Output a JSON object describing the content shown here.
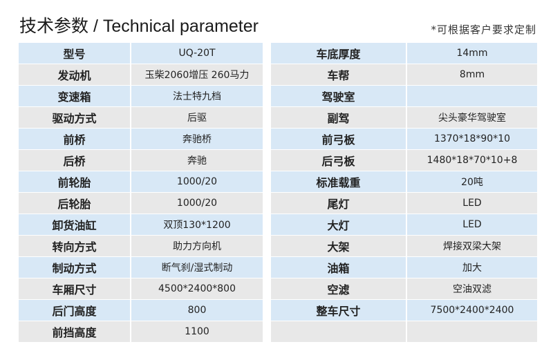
{
  "header": {
    "title_cn": "技术参数",
    "title_sep": " / ",
    "title_en": "Technical parameter",
    "note": "*可根据客户要求定制"
  },
  "left_table": [
    [
      "型号",
      "UQ-20T"
    ],
    [
      "发动机",
      "玉柴2060增压  260马力"
    ],
    [
      "变速箱",
      "法士特九档"
    ],
    [
      "驱动方式",
      "后驱"
    ],
    [
      "前桥",
      "奔驰桥"
    ],
    [
      "后桥",
      "奔驰"
    ],
    [
      "前轮胎",
      "1000/20"
    ],
    [
      "后轮胎",
      "1000/20"
    ],
    [
      "卸货油缸",
      "双顶130*1200"
    ],
    [
      "转向方式",
      "助力方向机"
    ],
    [
      "制动方式",
      "断气刹/湿式制动"
    ],
    [
      "车厢尺寸",
      "4500*2400*800"
    ],
    [
      "后门高度",
      "800"
    ],
    [
      "前挡高度",
      "1100"
    ]
  ],
  "right_table": [
    [
      "车底厚度",
      "14mm"
    ],
    [
      "车帮",
      "8mm"
    ],
    [
      "驾驶室",
      ""
    ],
    [
      "副驾",
      "尖头豪华驾驶室"
    ],
    [
      "前弓板",
      "1370*18*90*10"
    ],
    [
      "后弓板",
      "1480*18*70*10+8"
    ],
    [
      "标准载重",
      "20吨"
    ],
    [
      "尾灯",
      "LED"
    ],
    [
      "大灯",
      "LED"
    ],
    [
      "大架",
      "焊接双梁大架"
    ],
    [
      "油箱",
      "加大"
    ],
    [
      "空滤",
      "空油双滤"
    ],
    [
      "整车尺寸",
      "7500*2400*2400"
    ],
    [
      "",
      ""
    ]
  ]
}
